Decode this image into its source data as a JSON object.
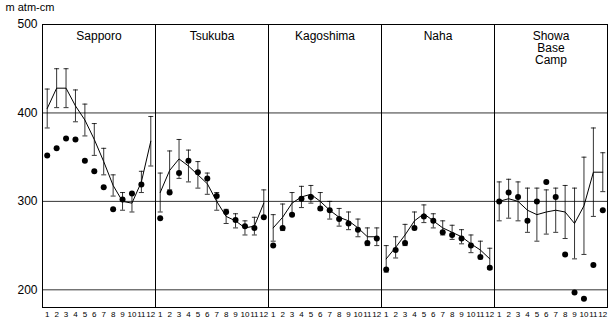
{
  "chart_data": {
    "type": "line",
    "x": [
      1,
      2,
      3,
      4,
      5,
      6,
      7,
      8,
      9,
      10,
      11,
      12
    ],
    "xlim": [
      0.5,
      12.5
    ],
    "xticks": [
      1,
      2,
      3,
      4,
      5,
      6,
      7,
      8,
      9,
      10,
      11,
      12
    ],
    "ylim": [
      180,
      500
    ],
    "yticks": [
      200,
      300,
      400,
      500
    ],
    "y_label": "m atm-cm",
    "grid": true,
    "color": "#000000",
    "marker": "circle",
    "panels": [
      {
        "title": "Sapporo",
        "values": [
          405,
          428,
          428,
          408,
          392,
          370,
          345,
          318,
          300,
          298,
          322,
          368
        ],
        "error": [
          22,
          22,
          22,
          18,
          18,
          18,
          15,
          12,
          10,
          10,
          12,
          28
        ],
        "points": [
          352,
          360,
          371,
          370,
          346,
          334,
          316,
          291,
          302,
          309,
          319,
          null
        ]
      },
      {
        "title": "Tsukuba",
        "values": [
          310,
          335,
          348,
          340,
          330,
          320,
          300,
          283,
          278,
          270,
          272,
          298
        ],
        "error": [
          22,
          22,
          22,
          18,
          15,
          12,
          10,
          8,
          8,
          8,
          10,
          15
        ],
        "points": [
          281,
          310,
          332,
          346,
          333,
          326,
          306,
          288,
          279,
          272,
          270,
          282
        ]
      },
      {
        "title": "Kagoshima",
        "values": [
          270,
          282,
          298,
          305,
          308,
          300,
          290,
          282,
          278,
          270,
          260,
          260
        ],
        "error": [
          15,
          15,
          12,
          12,
          10,
          10,
          10,
          10,
          10,
          10,
          10,
          10
        ],
        "points": [
          250,
          270,
          285,
          303,
          305,
          292,
          290,
          280,
          275,
          268,
          253,
          258
        ]
      },
      {
        "title": "Naha",
        "values": [
          235,
          248,
          262,
          278,
          286,
          278,
          270,
          265,
          260,
          252,
          245,
          235
        ],
        "error": [
          15,
          12,
          12,
          10,
          10,
          8,
          8,
          8,
          8,
          10,
          10,
          12
        ],
        "points": [
          223,
          245,
          253,
          270,
          283,
          278,
          265,
          262,
          258,
          250,
          237,
          225
        ]
      },
      {
        "title": "Showa Base Camp",
        "values": [
          300,
          303,
          300,
          290,
          285,
          288,
          290,
          288,
          275,
          295,
          333,
          333
        ],
        "error": [
          22,
          22,
          22,
          25,
          30,
          25,
          25,
          30,
          40,
          55,
          50,
          22
        ],
        "points": [
          300,
          310,
          305,
          278,
          300,
          322,
          305,
          240,
          197,
          190,
          228,
          290
        ]
      }
    ]
  }
}
